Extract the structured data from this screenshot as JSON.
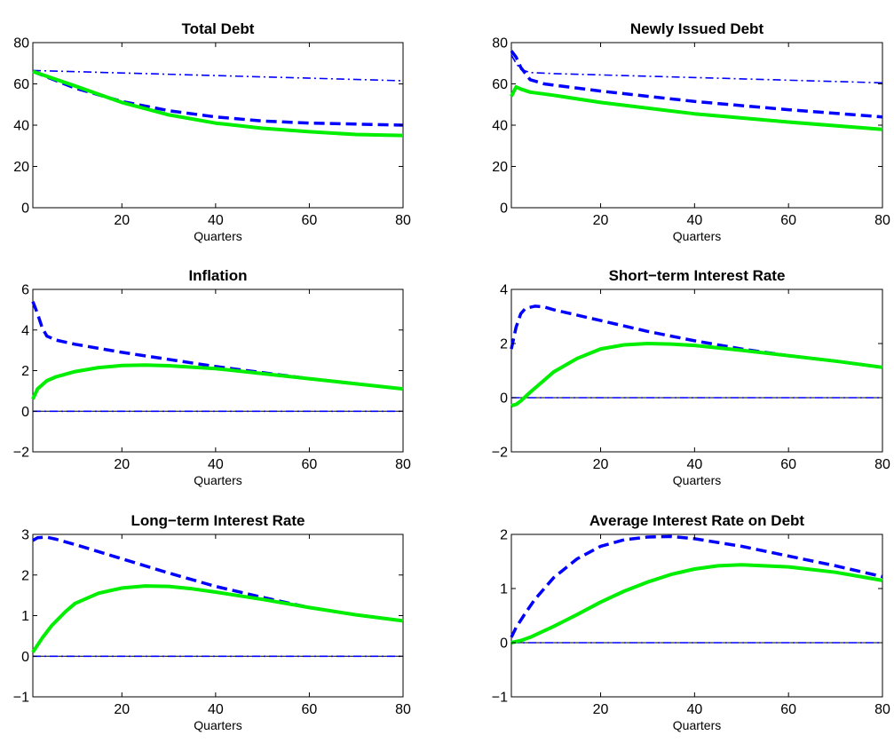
{
  "chart_data": [
    {
      "type": "line",
      "title": "Total Debt",
      "xlabel": "Quarters",
      "xlim": [
        1,
        80
      ],
      "ylim": [
        0,
        80
      ],
      "xticks": [
        20,
        40,
        60,
        80
      ],
      "yticks": [
        0,
        20,
        40,
        60,
        80
      ],
      "zero_line": false,
      "series": [
        {
          "style": "dashdot",
          "color": "#0000ff",
          "x": [
            1,
            80
          ],
          "y": [
            66.5,
            61.5
          ]
        },
        {
          "style": "dashed",
          "color": "#0000ff",
          "x": [
            1,
            10,
            20,
            30,
            40,
            50,
            60,
            70,
            80
          ],
          "y": [
            66,
            58,
            51.5,
            47,
            44,
            42,
            41,
            40.5,
            40
          ]
        },
        {
          "style": "solid",
          "color": "#00ee00",
          "x": [
            1,
            10,
            20,
            30,
            40,
            50,
            60,
            70,
            80
          ],
          "y": [
            66,
            59,
            51,
            45,
            41,
            38.5,
            36.8,
            35.5,
            35
          ]
        }
      ]
    },
    {
      "type": "line",
      "title": "Newly Issued Debt",
      "xlabel": "Quarters",
      "xlim": [
        1,
        80
      ],
      "ylim": [
        0,
        80
      ],
      "xticks": [
        20,
        40,
        60,
        80
      ],
      "yticks": [
        0,
        20,
        40,
        60,
        80
      ],
      "zero_line": false,
      "series": [
        {
          "style": "dashdot",
          "color": "#0000ff",
          "x": [
            1,
            2,
            3,
            5,
            10,
            80
          ],
          "y": [
            74,
            70,
            67,
            65.5,
            65,
            60.5
          ]
        },
        {
          "style": "dashed",
          "color": "#0000ff",
          "x": [
            1,
            2,
            3,
            5,
            8,
            20,
            40,
            60,
            80
          ],
          "y": [
            76,
            73,
            68,
            62,
            60,
            56.5,
            51.5,
            47.5,
            44
          ]
        },
        {
          "style": "solid",
          "color": "#00ee00",
          "x": [
            1,
            2,
            3,
            5,
            10,
            20,
            40,
            60,
            80
          ],
          "y": [
            54,
            58.5,
            57.5,
            56,
            54.5,
            51,
            45.5,
            41.5,
            38
          ]
        }
      ]
    },
    {
      "type": "line",
      "title": "Inflation",
      "xlabel": "Quarters",
      "xlim": [
        1,
        80
      ],
      "ylim": [
        -2,
        6
      ],
      "xticks": [
        20,
        40,
        60,
        80
      ],
      "yticks": [
        -2,
        0,
        2,
        4,
        6
      ],
      "zero_line": true,
      "series": [
        {
          "style": "dashdot",
          "color": "#0000ff",
          "x": [
            1,
            80
          ],
          "y": [
            0,
            0
          ]
        },
        {
          "style": "dashed",
          "color": "#0000ff",
          "x": [
            1,
            2,
            3,
            4,
            6,
            10,
            20,
            40,
            60,
            80
          ],
          "y": [
            5.4,
            4.8,
            4.1,
            3.7,
            3.5,
            3.3,
            2.9,
            2.2,
            1.6,
            1.1
          ]
        },
        {
          "style": "solid",
          "color": "#00ee00",
          "x": [
            1,
            2,
            4,
            6,
            10,
            15,
            20,
            25,
            30,
            40,
            50,
            60,
            70,
            80
          ],
          "y": [
            0.6,
            1.1,
            1.5,
            1.7,
            1.95,
            2.15,
            2.25,
            2.27,
            2.24,
            2.1,
            1.85,
            1.6,
            1.35,
            1.1
          ]
        }
      ]
    },
    {
      "type": "line",
      "title": "Short−term Interest Rate",
      "xlabel": "Quarters",
      "xlim": [
        1,
        80
      ],
      "ylim": [
        -2,
        4
      ],
      "xticks": [
        20,
        40,
        60,
        80
      ],
      "yticks": [
        -2,
        0,
        2,
        4
      ],
      "zero_line": true,
      "series": [
        {
          "style": "dashdot",
          "color": "#0000ff",
          "x": [
            1,
            80
          ],
          "y": [
            0,
            0
          ]
        },
        {
          "style": "dashed",
          "color": "#0000ff",
          "x": [
            1,
            2,
            3,
            4,
            6,
            8,
            10,
            20,
            30,
            40,
            50,
            60,
            70,
            80
          ],
          "y": [
            1.8,
            2.6,
            3.1,
            3.3,
            3.38,
            3.35,
            3.25,
            2.85,
            2.45,
            2.1,
            1.8,
            1.55,
            1.35,
            1.12
          ]
        },
        {
          "style": "solid",
          "color": "#00ee00",
          "x": [
            1,
            2,
            3,
            5,
            8,
            10,
            15,
            20,
            25,
            30,
            35,
            40,
            50,
            60,
            70,
            80
          ],
          "y": [
            -0.3,
            -0.25,
            -0.12,
            0.2,
            0.65,
            0.95,
            1.45,
            1.8,
            1.95,
            2.0,
            1.98,
            1.93,
            1.75,
            1.55,
            1.35,
            1.12
          ]
        }
      ]
    },
    {
      "type": "line",
      "title": "Long−term Interest Rate",
      "xlabel": "Quarters",
      "xlim": [
        1,
        80
      ],
      "ylim": [
        -1,
        3
      ],
      "xticks": [
        20,
        40,
        60,
        80
      ],
      "yticks": [
        -1,
        0,
        1,
        2,
        3
      ],
      "zero_line": true,
      "series": [
        {
          "style": "dashdot",
          "color": "#0000ff",
          "x": [
            1,
            80
          ],
          "y": [
            0,
            0
          ]
        },
        {
          "style": "dashed",
          "color": "#0000ff",
          "x": [
            1,
            2,
            4,
            6,
            10,
            20,
            30,
            40,
            50,
            60,
            70,
            80
          ],
          "y": [
            2.85,
            2.92,
            2.93,
            2.88,
            2.75,
            2.4,
            2.05,
            1.72,
            1.45,
            1.2,
            1.02,
            0.87
          ]
        },
        {
          "style": "solid",
          "color": "#00ee00",
          "x": [
            1,
            3,
            5,
            8,
            10,
            15,
            20,
            25,
            30,
            35,
            40,
            50,
            60,
            70,
            80
          ],
          "y": [
            0.1,
            0.45,
            0.75,
            1.1,
            1.3,
            1.55,
            1.68,
            1.73,
            1.72,
            1.66,
            1.58,
            1.4,
            1.2,
            1.02,
            0.87
          ]
        }
      ]
    },
    {
      "type": "line",
      "title": "Average Interest Rate on Debt",
      "xlabel": "Quarters",
      "xlim": [
        1,
        80
      ],
      "ylim": [
        -1,
        2
      ],
      "xticks": [
        20,
        40,
        60,
        80
      ],
      "yticks": [
        -1,
        0,
        1,
        2
      ],
      "zero_line": true,
      "series": [
        {
          "style": "dashdot",
          "color": "#0000ff",
          "x": [
            1,
            80
          ],
          "y": [
            0,
            0
          ]
        },
        {
          "style": "dashed",
          "color": "#0000ff",
          "x": [
            1,
            2,
            4,
            6,
            10,
            15,
            20,
            25,
            30,
            35,
            40,
            50,
            60,
            70,
            80
          ],
          "y": [
            0.1,
            0.28,
            0.55,
            0.8,
            1.2,
            1.55,
            1.78,
            1.9,
            1.95,
            1.96,
            1.92,
            1.78,
            1.6,
            1.42,
            1.22
          ]
        },
        {
          "style": "solid",
          "color": "#00ee00",
          "x": [
            1,
            3,
            5,
            10,
            15,
            20,
            25,
            30,
            35,
            40,
            45,
            50,
            60,
            70,
            80
          ],
          "y": [
            0.0,
            0.04,
            0.1,
            0.3,
            0.52,
            0.75,
            0.95,
            1.12,
            1.26,
            1.36,
            1.42,
            1.44,
            1.4,
            1.3,
            1.15
          ]
        }
      ]
    }
  ]
}
